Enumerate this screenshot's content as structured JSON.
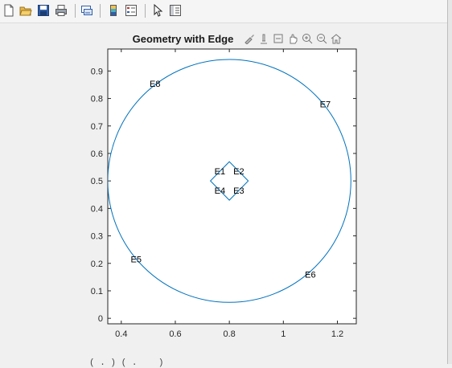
{
  "window": {
    "toolbar": [
      {
        "name": "new-figure-icon"
      },
      {
        "name": "open-file-icon"
      },
      {
        "name": "save-icon"
      },
      {
        "name": "print-icon"
      },
      {
        "name": "link-plot-icon"
      },
      {
        "name": "colorbar-icon"
      },
      {
        "name": "legend-icon"
      },
      {
        "name": "edit-plot-icon"
      },
      {
        "name": "property-inspector-icon"
      }
    ],
    "bottom_text": "     ( . ) ( .    )"
  },
  "axes_toolbar": [
    "brush-icon",
    "data-tips-icon",
    "restore-view-icon",
    "pan-icon",
    "zoom-in-icon",
    "zoom-out-icon",
    "home-icon"
  ],
  "colors": {
    "accent": "#0072bd",
    "axis": "#262626",
    "text": "#1a1a1a"
  },
  "chart_data": {
    "type": "line",
    "title": "Geometry with Edge",
    "xlabel": "",
    "ylabel": "",
    "xlim": [
      0.35,
      1.27
    ],
    "ylim": [
      -0.02,
      0.98
    ],
    "xticks": [
      0.4,
      0.6,
      0.8,
      1,
      1.2
    ],
    "xtick_labels": [
      "0.4",
      "0.6",
      "0.8",
      "1",
      "1.2"
    ],
    "yticks": [
      0,
      0.1,
      0.2,
      0.3,
      0.4,
      0.5,
      0.6,
      0.7,
      0.8,
      0.9
    ],
    "ytick_labels": [
      "0",
      "0.1",
      "0.2",
      "0.3",
      "0.4",
      "0.5",
      "0.6",
      "0.7",
      "0.8",
      "0.9"
    ],
    "grid": false,
    "circle": {
      "cx": 0.8,
      "cy": 0.5,
      "r": 0.45
    },
    "diamond": [
      [
        0.8,
        0.57
      ],
      [
        0.87,
        0.5
      ],
      [
        0.8,
        0.43
      ],
      [
        0.73,
        0.5
      ]
    ],
    "edge_labels": [
      {
        "text": "E1",
        "x": 0.765,
        "y": 0.535
      },
      {
        "text": "E2",
        "x": 0.835,
        "y": 0.535
      },
      {
        "text": "E3",
        "x": 0.835,
        "y": 0.465
      },
      {
        "text": "E4",
        "x": 0.765,
        "y": 0.465
      },
      {
        "text": "E5",
        "x": 0.455,
        "y": 0.215
      },
      {
        "text": "E6",
        "x": 1.1,
        "y": 0.16
      },
      {
        "text": "E7",
        "x": 1.155,
        "y": 0.78
      },
      {
        "text": "E8",
        "x": 0.525,
        "y": 0.855
      }
    ]
  }
}
